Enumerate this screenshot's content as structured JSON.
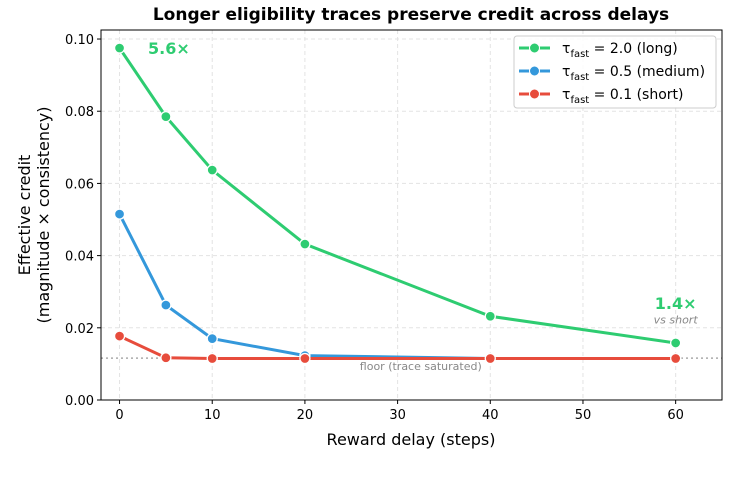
{
  "chart_data": {
    "type": "line",
    "title": "Longer eligibility traces preserve credit across delays",
    "xlabel": "Reward delay (steps)",
    "ylabel": [
      "Effective credit",
      "(magnitude × consistency)"
    ],
    "xlim": [
      -2,
      65
    ],
    "ylim": [
      0,
      0.1025
    ],
    "xticks": [
      0,
      10,
      20,
      30,
      40,
      50,
      60
    ],
    "yticks": [
      0.0,
      0.02,
      0.04,
      0.06,
      0.08,
      0.1
    ],
    "ytick_labels": [
      "0.00",
      "0.02",
      "0.04",
      "0.06",
      "0.08",
      "0.10"
    ],
    "grid": true,
    "legend_position": "top-right",
    "x": [
      0,
      5,
      10,
      20,
      40,
      60
    ],
    "series": [
      {
        "name": "2.0 (long)",
        "tau": "τ",
        "sub": "fast",
        "color": "#2ecc71",
        "values": [
          0.0975,
          0.0785,
          0.0637,
          0.0432,
          0.0232,
          0.0158
        ]
      },
      {
        "name": "0.5 (medium)",
        "tau": "τ",
        "sub": "fast",
        "color": "#3498db",
        "values": [
          0.0515,
          0.0263,
          0.017,
          0.0123,
          0.0115,
          0.0115
        ]
      },
      {
        "name": "0.1 (short)",
        "tau": "τ",
        "sub": "fast",
        "color": "#e74c3c",
        "values": [
          0.0177,
          0.0117,
          0.0115,
          0.0115,
          0.0115,
          0.0115
        ]
      }
    ],
    "floor": {
      "value": 0.0116,
      "label": "floor (trace saturated)"
    },
    "annotations": [
      {
        "text": "5.6×",
        "x": 5,
        "y": 0.0975,
        "color": "#2ecc71"
      },
      {
        "text": "1.4×",
        "x": 60,
        "y": 0.0252,
        "color": "#2ecc71"
      },
      {
        "text": "vs short",
        "x": 60,
        "y": 0.0212,
        "color": "#888888"
      }
    ]
  }
}
